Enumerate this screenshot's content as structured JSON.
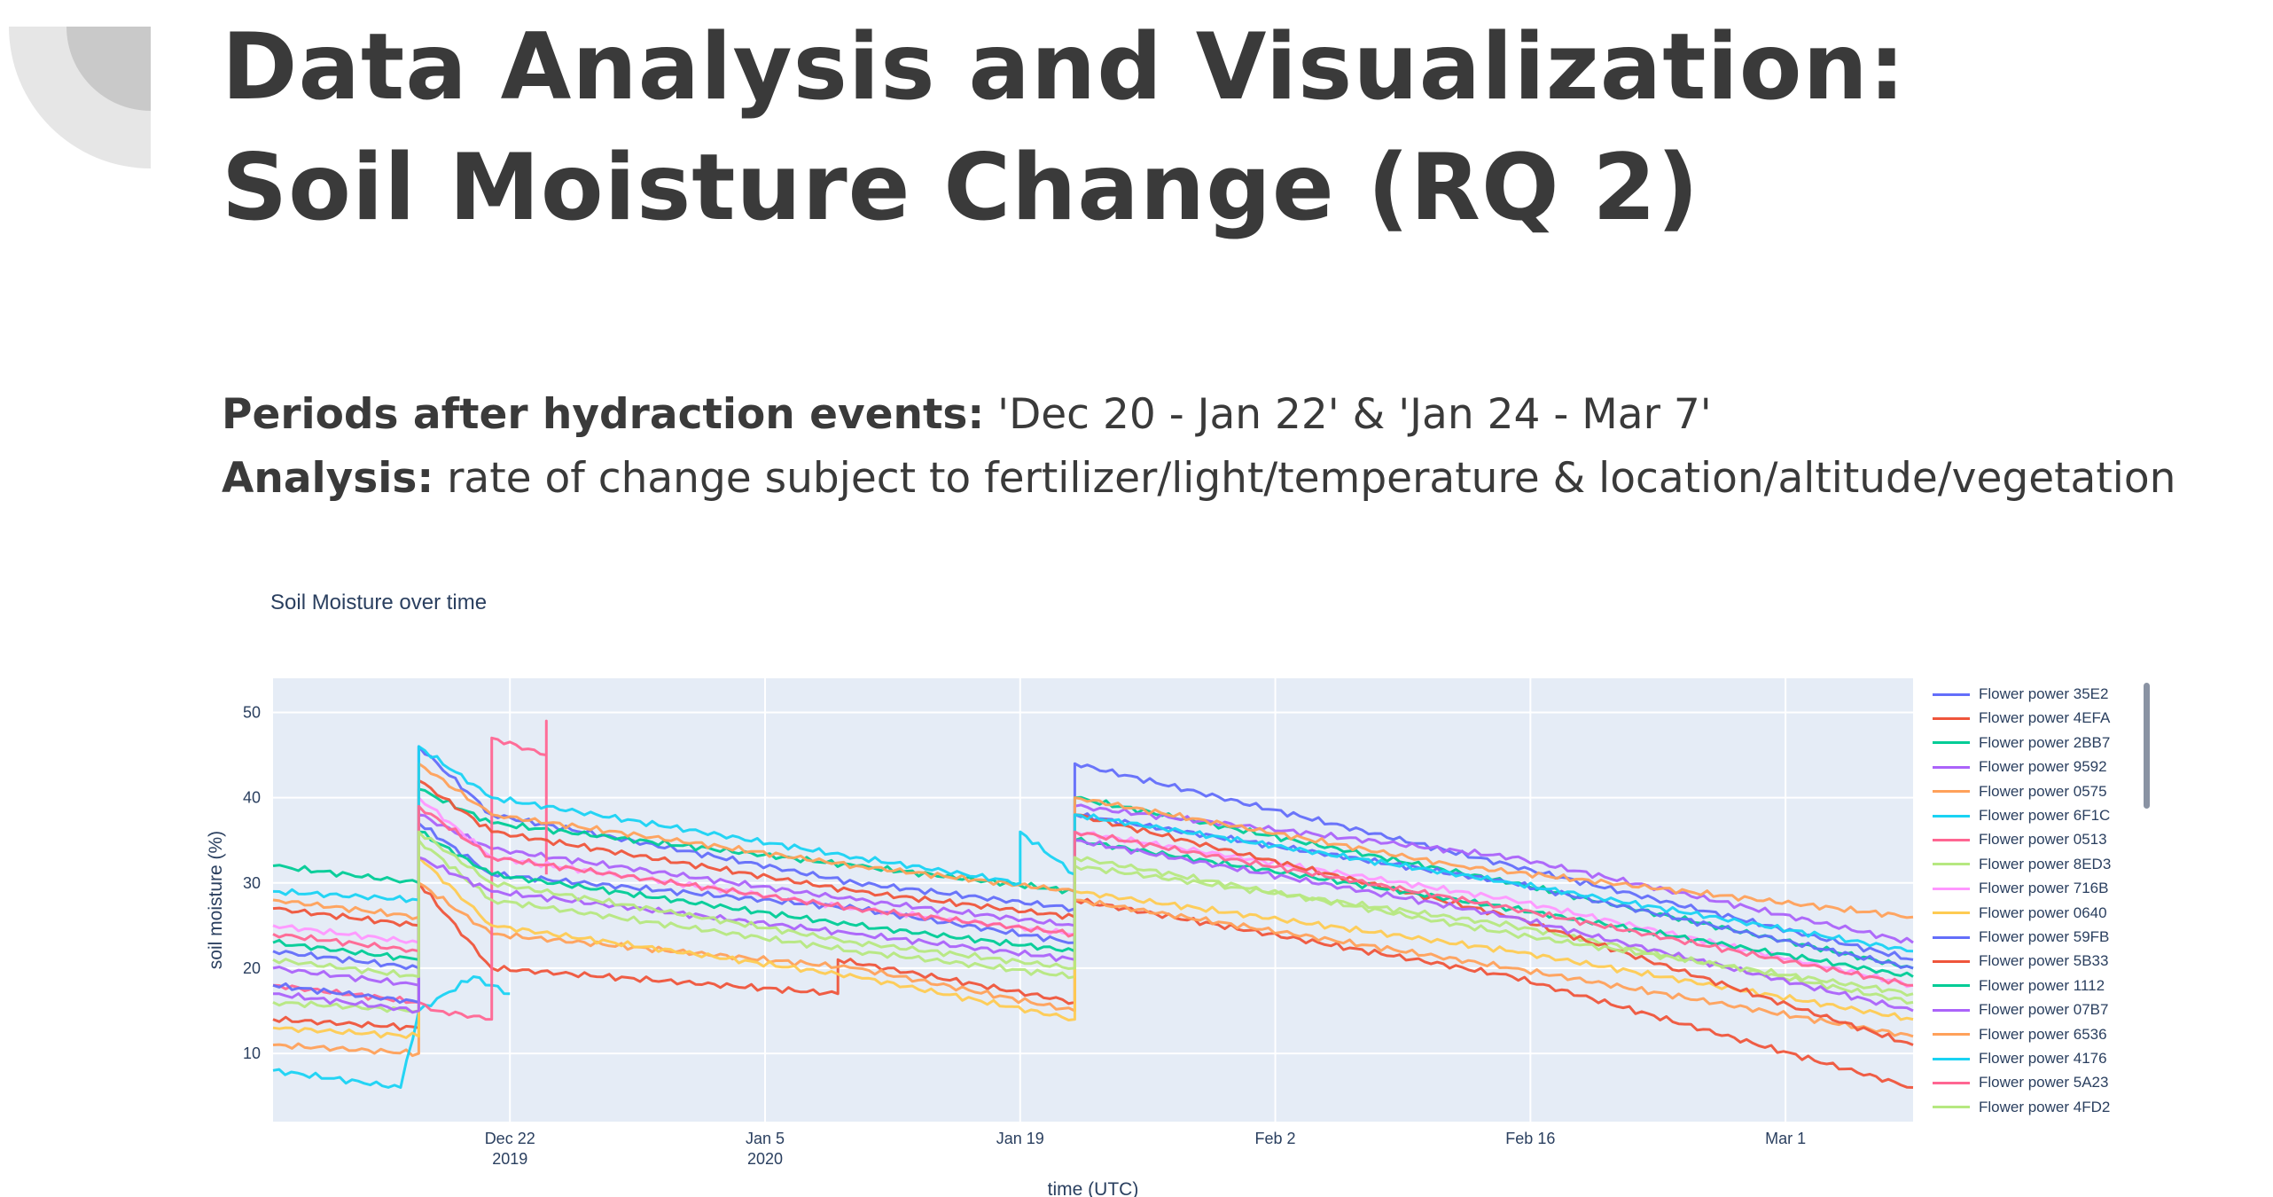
{
  "slide": {
    "title_line1": "Data Analysis and Visualization:",
    "title_line2": "Soil Moisture Change (RQ 2)",
    "periods_label": "Periods after hydraction events:",
    "periods_text": " 'Dec 20 - Jan 22' & 'Jan 24 - Mar 7'",
    "analysis_label": "Analysis:",
    "analysis_text": " rate of change subject to fertilizer/light/temperature & location/altitude/vegetation"
  },
  "chart_data": {
    "type": "line",
    "title": "Soil Moisture over time",
    "xlabel": "time (UTC)",
    "ylabel": "soil moisture (%)",
    "xlim": [
      "2019-12-09",
      "2020-03-08"
    ],
    "ylim": [
      2,
      54
    ],
    "yticks": [
      10,
      20,
      30,
      40,
      50
    ],
    "xticks": [
      {
        "date": "2019-12-22",
        "label": "Dec 22",
        "sublabel": "2019"
      },
      {
        "date": "2020-01-05",
        "label": "Jan 5",
        "sublabel": "2020"
      },
      {
        "date": "2020-01-19",
        "label": "Jan 19",
        "sublabel": ""
      },
      {
        "date": "2020-02-02",
        "label": "Feb 2",
        "sublabel": ""
      },
      {
        "date": "2020-02-16",
        "label": "Feb 16",
        "sublabel": ""
      },
      {
        "date": "2020-03-01",
        "label": "Mar 1",
        "sublabel": ""
      }
    ],
    "grid": true,
    "legend_position": "right",
    "series": [
      {
        "name": "Flower power 35E2",
        "color": "#636efa",
        "x": [
          "2019-12-09",
          "2019-12-17",
          "2019-12-17",
          "2019-12-21",
          "2020-01-10",
          "2020-01-22",
          "2020-01-22",
          "2020-02-15",
          "2020-03-08"
        ],
        "y": [
          22,
          20,
          46,
          38,
          30,
          27,
          44,
          32,
          21
        ]
      },
      {
        "name": "Flower power 4EFA",
        "color": "#ef553b",
        "x": [
          "2019-12-09",
          "2019-12-17",
          "2019-12-17",
          "2019-12-21",
          "2020-01-09",
          "2020-01-09",
          "2020-01-22",
          "2020-01-22",
          "2020-02-15",
          "2020-03-08"
        ],
        "y": [
          14,
          13,
          30,
          20,
          17,
          21,
          16,
          28,
          19,
          6
        ]
      },
      {
        "name": "Flower power 2BB7",
        "color": "#00cc96",
        "x": [
          "2019-12-09",
          "2019-12-17",
          "2019-12-17",
          "2019-12-21",
          "2020-01-10",
          "2020-01-22",
          "2020-01-22",
          "2020-02-15",
          "2020-03-08"
        ],
        "y": [
          32,
          30,
          41,
          37,
          32,
          29,
          40,
          30,
          20
        ]
      },
      {
        "name": "Flower power 9592",
        "color": "#ab63fa",
        "x": [
          "2019-12-09",
          "2019-12-17",
          "2019-12-17",
          "2019-12-21",
          "2020-01-10",
          "2020-01-22",
          "2020-01-22",
          "2020-02-15",
          "2020-03-08"
        ],
        "y": [
          20,
          18,
          38,
          34,
          28,
          25,
          39,
          33,
          23
        ]
      },
      {
        "name": "Flower power 0575",
        "color": "#ffa15a",
        "x": [
          "2019-12-09",
          "2019-12-17",
          "2019-12-17",
          "2019-12-21",
          "2020-01-10",
          "2020-01-22",
          "2020-01-22",
          "2020-02-15",
          "2020-03-08"
        ],
        "y": [
          11,
          10,
          30,
          24,
          20,
          15,
          28,
          20,
          12
        ]
      },
      {
        "name": "Flower power 6F1C",
        "color": "#19d3f3",
        "x": [
          "2019-12-09",
          "2019-12-16",
          "2019-12-17",
          "2019-12-20",
          "2019-12-21",
          "2019-12-22"
        ],
        "y": [
          8,
          6,
          15,
          19,
          18,
          17
        ]
      },
      {
        "name": "Flower power 0513",
        "color": "#ff6692",
        "x": [
          "2019-12-09",
          "2019-12-17",
          "2019-12-18",
          "2019-12-21",
          "2019-12-21",
          "2019-12-21",
          "2019-12-24",
          "2019-12-24",
          "2019-12-24"
        ],
        "y": [
          18,
          16,
          15,
          14,
          14,
          47,
          45,
          49,
          31
        ]
      },
      {
        "name": "Flower power 8ED3",
        "color": "#b6e880",
        "x": [
          "2019-12-09",
          "2019-12-17",
          "2019-12-17",
          "2019-12-21",
          "2020-01-10",
          "2020-01-22",
          "2020-01-22",
          "2020-02-15",
          "2020-03-08"
        ],
        "y": [
          16,
          15,
          35,
          28,
          22,
          19,
          32,
          25,
          16
        ]
      },
      {
        "name": "Flower power 716B",
        "color": "#ff97ff",
        "x": [
          "2019-12-09",
          "2019-12-17",
          "2019-12-17",
          "2019-12-21",
          "2020-01-10",
          "2020-01-22",
          "2020-01-22",
          "2020-02-15",
          "2020-03-08"
        ],
        "y": [
          25,
          23,
          40,
          33,
          27,
          24,
          36,
          28,
          18
        ]
      },
      {
        "name": "Flower power 0640",
        "color": "#fecb52",
        "x": [
          "2019-12-09",
          "2019-12-17",
          "2019-12-17",
          "2019-12-21",
          "2020-01-10",
          "2020-01-22",
          "2020-01-22",
          "2020-02-15",
          "2020-03-08"
        ],
        "y": [
          13,
          12,
          33,
          25,
          19,
          14,
          29,
          22,
          14
        ]
      },
      {
        "name": "Flower power 59FB",
        "color": "#636efa",
        "x": [
          "2019-12-09",
          "2019-12-17",
          "2019-12-17",
          "2019-12-21",
          "2020-01-10",
          "2020-01-22",
          "2020-01-22",
          "2020-02-15",
          "2020-03-08"
        ],
        "y": [
          18,
          16,
          37,
          31,
          27,
          23,
          38,
          30,
          20
        ]
      },
      {
        "name": "Flower power 5B33",
        "color": "#ef553b",
        "x": [
          "2019-12-09",
          "2019-12-17",
          "2019-12-17",
          "2019-12-21",
          "2020-01-10",
          "2020-01-22",
          "2020-01-22",
          "2020-02-15",
          "2020-03-08"
        ],
        "y": [
          27,
          25,
          42,
          36,
          29,
          26,
          38,
          26,
          11
        ]
      },
      {
        "name": "Flower power 1112",
        "color": "#00cc96",
        "x": [
          "2019-12-09",
          "2019-12-17",
          "2019-12-17",
          "2019-12-21",
          "2020-01-10",
          "2020-01-22",
          "2020-01-22",
          "2020-02-15",
          "2020-03-08"
        ],
        "y": [
          23,
          21,
          36,
          31,
          25,
          22,
          35,
          27,
          19
        ]
      },
      {
        "name": "Flower power 07B7",
        "color": "#ab63fa",
        "x": [
          "2019-12-09",
          "2019-12-17",
          "2019-12-17",
          "2019-12-21",
          "2020-01-10",
          "2020-01-22",
          "2020-01-22",
          "2020-02-15",
          "2020-03-08"
        ],
        "y": [
          17,
          15,
          33,
          29,
          24,
          21,
          35,
          26,
          15
        ]
      },
      {
        "name": "Flower power 6536",
        "color": "#ffa15a",
        "x": [
          "2019-12-09",
          "2019-12-17",
          "2019-12-17",
          "2019-12-21",
          "2020-01-10",
          "2020-01-22",
          "2020-01-22",
          "2020-02-12",
          "2020-03-08"
        ],
        "y": [
          28,
          26,
          44,
          38,
          32,
          29,
          40,
          32,
          26
        ]
      },
      {
        "name": "Flower power 4176",
        "color": "#19d3f3",
        "x": [
          "2019-12-09",
          "2019-12-17",
          "2019-12-17",
          "2019-12-21",
          "2020-01-10",
          "2020-01-19",
          "2020-01-19",
          "2020-01-22",
          "2020-01-22",
          "2020-02-15",
          "2020-03-08"
        ],
        "y": [
          29,
          28,
          46,
          40,
          33,
          30,
          36,
          31,
          38,
          30,
          22
        ]
      },
      {
        "name": "Flower power 5A23",
        "color": "#ff6692",
        "x": [
          "2019-12-09",
          "2019-12-17",
          "2019-12-17",
          "2019-12-21",
          "2020-01-10",
          "2020-01-22",
          "2020-01-22",
          "2020-02-15",
          "2020-03-08"
        ],
        "y": [
          24,
          22,
          39,
          33,
          27,
          24,
          36,
          27,
          18
        ]
      },
      {
        "name": "Flower power 4FD2",
        "color": "#b6e880",
        "x": [
          "2019-12-09",
          "2019-12-17",
          "2019-12-17",
          "2019-12-21",
          "2020-01-10",
          "2020-01-22",
          "2020-01-22",
          "2020-02-15",
          "2020-03-08"
        ],
        "y": [
          21,
          19,
          36,
          30,
          23,
          20,
          33,
          24,
          17
        ]
      }
    ]
  }
}
